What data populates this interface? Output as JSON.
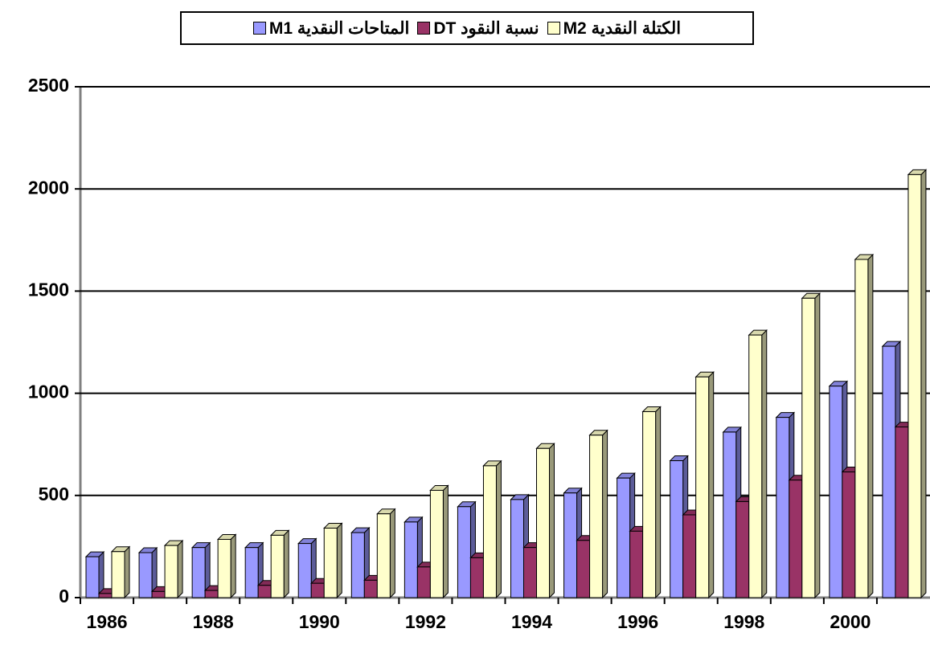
{
  "chart_data": {
    "type": "bar3d",
    "categories": [
      "1986",
      null,
      "1988",
      null,
      "1990",
      null,
      "1992",
      null,
      "1994",
      null,
      "1996",
      null,
      "1998",
      null,
      "2000",
      null
    ],
    "series": [
      {
        "name": "المتاحات النقدية M1",
        "color": "#9999ff",
        "values": [
          200,
          220,
          245,
          245,
          265,
          318,
          370,
          445,
          480,
          512,
          585,
          670,
          810,
          882,
          1035,
          1230
        ]
      },
      {
        "name": "نسبة النقود DT",
        "color": "#993366",
        "values": [
          20,
          30,
          35,
          60,
          70,
          85,
          150,
          195,
          245,
          280,
          325,
          405,
          470,
          575,
          615,
          835
        ]
      },
      {
        "name": "الكتلة النقدية M2",
        "color": "#ffffcc",
        "values": [
          225,
          255,
          285,
          305,
          340,
          410,
          525,
          645,
          730,
          795,
          910,
          1080,
          1285,
          1465,
          1655,
          2070
        ]
      }
    ],
    "ylim": [
      0,
      2500
    ],
    "yticks": [
      0,
      500,
      1000,
      1500,
      2000,
      2500
    ],
    "grid": true
  }
}
